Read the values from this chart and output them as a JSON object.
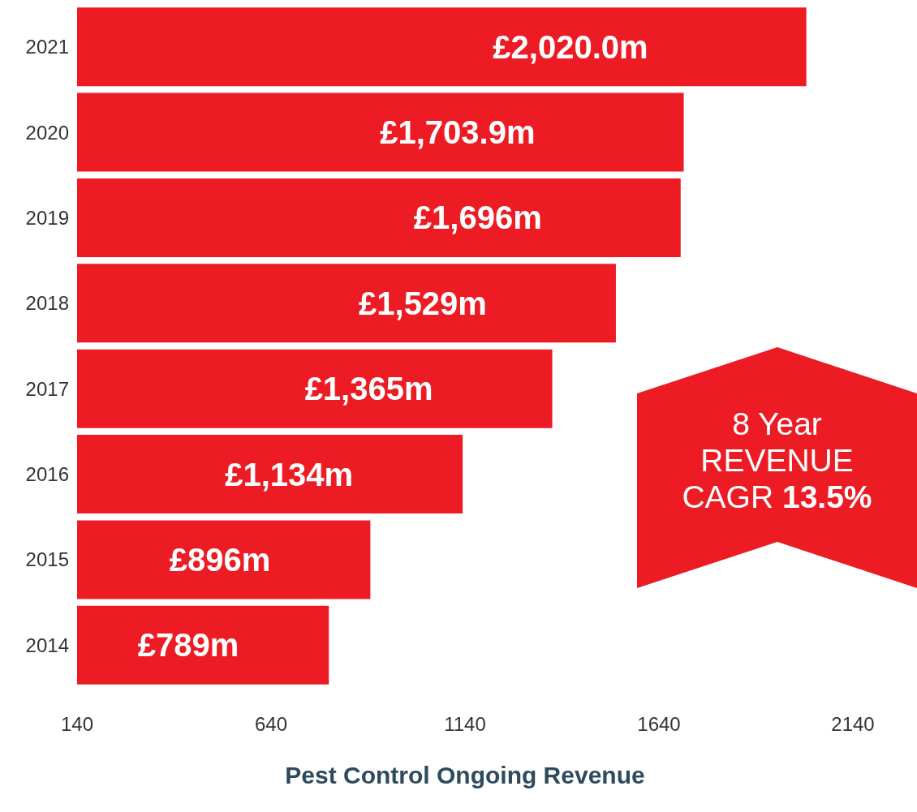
{
  "chart_data": {
    "type": "bar",
    "orientation": "horizontal",
    "xlabel": "Pest Control Ongoing Revenue",
    "categories": [
      "2021",
      "2020",
      "2019",
      "2018",
      "2017",
      "2016",
      "2015",
      "2014"
    ],
    "values": [
      2020.0,
      1703.9,
      1696,
      1529,
      1365,
      1134,
      896,
      789
    ],
    "value_labels": [
      "£2,020.0m",
      "£1,703.9m",
      "£1,696m",
      "£1,529m",
      "£1,365m",
      "£1,134m",
      "£896m",
      "£789m"
    ],
    "color": "#ed1c24",
    "xlim": [
      140,
      2140
    ],
    "xticks": [
      140,
      640,
      1140,
      1640,
      2140
    ],
    "grid": false,
    "annotations": [
      "8 Year REVENUE CAGR 13.5%"
    ]
  }
}
